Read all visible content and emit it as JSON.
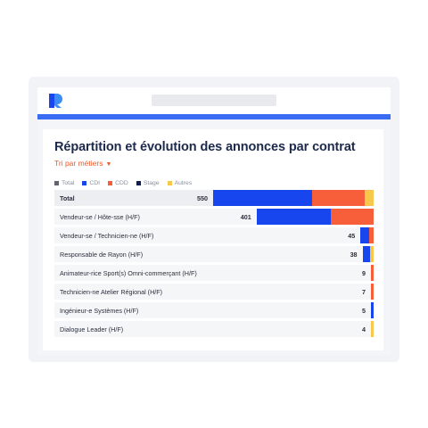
{
  "app": {
    "logo_icon": "brand-logo-icon",
    "brand_color": "#3a6cf4"
  },
  "card": {
    "title": "Répartition et évolution des annonces par contrat",
    "sort_label": "Tri par métiers",
    "sort_caret": "▼"
  },
  "legend": [
    {
      "label": "Total",
      "color": "#5f6470"
    },
    {
      "label": "CDI",
      "color": "#1746ef"
    },
    {
      "label": "CDD",
      "color": "#f75f3a"
    },
    {
      "label": "Stage",
      "color": "#0c1f4d"
    },
    {
      "label": "Autres",
      "color": "#f7c84a"
    }
  ],
  "chart_data": {
    "type": "bar",
    "stacked": true,
    "orientation": "horizontal",
    "title": "Répartition et évolution des annonces par contrat",
    "series_order": [
      "CDI",
      "CDD",
      "Stage",
      "Autres"
    ],
    "rows": [
      {
        "label": "Total",
        "total": 550,
        "CDI": 338,
        "CDD": 180,
        "Stage": 0,
        "Autres": 32
      },
      {
        "label": "Vendeur-se / Hôte-sse (H/F)",
        "total": 401,
        "CDI": 255,
        "CDD": 146,
        "Stage": 0,
        "Autres": 0
      },
      {
        "label": "Vendeur-se / Technicien-ne (H/F)",
        "total": 45,
        "CDI": 30,
        "CDD": 15,
        "Stage": 0,
        "Autres": 0
      },
      {
        "label": "Responsable de Rayon (H/F)",
        "total": 38,
        "CDI": 25,
        "CDD": 0,
        "Stage": 0,
        "Autres": 13
      },
      {
        "label": "Animateur-rice Sport(s) Omni-commerçant (H/F)",
        "total": 9,
        "CDI": 0,
        "CDD": 9,
        "Stage": 0,
        "Autres": 0
      },
      {
        "label": "Technicien-ne Atelier Régional (H/F)",
        "total": 7,
        "CDI": 0,
        "CDD": 7,
        "Stage": 0,
        "Autres": 0
      },
      {
        "label": "Ingénieur-e Systèmes (H/F)",
        "total": 5,
        "CDI": 5,
        "CDD": 0,
        "Stage": 0,
        "Autres": 0
      },
      {
        "label": "Dialogue Leader (H/F)",
        "total": 4,
        "CDI": 0,
        "CDD": 0,
        "Stage": 0,
        "Autres": 4
      }
    ]
  }
}
